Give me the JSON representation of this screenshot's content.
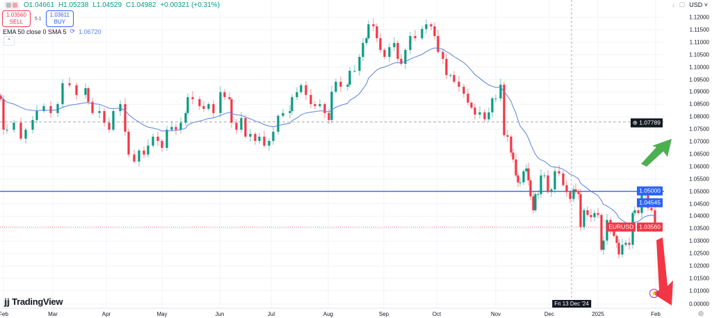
{
  "legend": {
    "open": "O1.04661",
    "high": "H1.05238",
    "low": "L1.04529",
    "close": "C1.04982",
    "change": "+0.00321 (+0.31%)"
  },
  "trade": {
    "sell_price": "1.03560",
    "sell_label": "SELL",
    "spread": "5.1",
    "buy_price": "1.03611",
    "buy_label": "BUY"
  },
  "indicator": {
    "label": "EMA 50 close 0 SMA 5",
    "value": "1.06720"
  },
  "toolbar": {
    "currency": "USD"
  },
  "crosshair_date": "Fri 13 Dec '24",
  "logo_text": "TradingView",
  "colors": {
    "up": "#089981",
    "down": "#f23645",
    "ema": "#5b7fde",
    "hline": "#2962ff",
    "grid": "#f0f3fa"
  },
  "chart_data": {
    "type": "candlestick",
    "symbol": "EURUSD",
    "price_ticks": [
      "1.12000",
      "1.11500",
      "1.11000",
      "1.10500",
      "1.10000",
      "1.09500",
      "1.09000",
      "1.08500",
      "1.08000",
      "1.07500",
      "1.07000",
      "1.06500",
      "1.06000",
      "1.05500",
      "1.05000",
      "1.04500",
      "1.04000",
      "1.03500",
      "1.03000",
      "1.02500",
      "1.02000",
      "1.01500",
      "1.01000",
      "0.00000"
    ],
    "time_ticks": [
      "Feb",
      "Mar",
      "Apr",
      "May",
      "Jun",
      "Jul",
      "Aug",
      "Sep",
      "Oct",
      "Nov",
      "Dec",
      "2025",
      "Feb"
    ],
    "ylim": [
      1.0,
      1.125
    ],
    "closes": [
      1.0871,
      1.0748,
      1.0748,
      1.0776,
      1.0712,
      1.0748,
      1.0787,
      1.0823,
      1.0843,
      1.0815,
      1.0851,
      1.0935,
      1.0927,
      1.0888,
      1.0915,
      1.086,
      1.0815,
      1.0823,
      1.0776,
      1.0748,
      1.0823,
      1.0851,
      1.074,
      1.0648,
      1.062,
      1.0664,
      1.0648,
      1.0684,
      1.072,
      1.0703,
      1.0675,
      1.0748,
      1.0759,
      1.0748,
      1.0776,
      1.0815,
      1.0879,
      1.0871,
      1.0843,
      1.0832,
      1.0851,
      1.0815,
      1.0899,
      1.0879,
      1.0871,
      1.0776,
      1.0748,
      1.0795,
      1.072,
      1.0731,
      1.0703,
      1.072,
      1.0684,
      1.0703,
      1.074,
      1.0804,
      1.0815,
      1.0823,
      1.0879,
      1.0899,
      1.0927,
      1.0888,
      1.0851,
      1.0843,
      1.0851,
      1.0815,
      1.0787,
      1.0901,
      1.0941,
      1.0921,
      1.0929,
      1.0985,
      1.0985,
      1.1041,
      1.1097,
      1.1116,
      1.1172,
      1.1164,
      1.1116,
      1.1069,
      1.1041,
      1.108,
      1.1097,
      1.1033,
      1.1013,
      1.1069,
      1.1125,
      1.1116,
      1.1153,
      1.1172,
      1.1164,
      1.1125,
      1.1061,
      1.1033,
      1.0968,
      1.0968,
      1.0941,
      1.0921,
      1.0893,
      1.0857,
      1.0837,
      1.0809,
      1.0818,
      1.079,
      1.0818,
      1.0874,
      1.0874,
      1.0929,
      1.0726,
      1.072,
      1.0656,
      1.0628,
      1.0564,
      1.0536,
      1.0536,
      1.0581,
      1.0592,
      1.0544,
      1.048,
      1.0424,
      1.0489,
      1.0489,
      1.0564,
      1.0564,
      1.0497,
      1.0508,
      1.0581,
      1.0572,
      1.0525,
      1.0497,
      1.0469,
      1.0508,
      1.0497,
      1.0489,
      1.0357,
      1.0424,
      1.0405,
      1.0396,
      1.0413,
      1.0405,
      1.0265,
      1.0302,
      1.0385,
      1.0341,
      1.0321,
      1.0293,
      1.0246,
      1.0285,
      1.0293,
      1.0285,
      1.0413,
      1.0424,
      1.0413,
      1.0489,
      1.0489,
      1.0433,
      1.0424,
      1.0356
    ],
    "ema_period": 50,
    "horizontal_lines": [
      {
        "price": 1.05,
        "label": "1.05000",
        "style": "solid",
        "color": "#2962ff"
      },
      {
        "price": 1.07789,
        "label": "1.07789",
        "style": "dashed",
        "color": "#131722"
      }
    ],
    "ema_last": {
      "price": 1.04545,
      "label": "1.04545"
    },
    "last_price": {
      "price": 1.0356,
      "label": "1.03560",
      "symbol_label": "EURUSD"
    },
    "annotations": [
      {
        "type": "arrow",
        "direction": "up",
        "color": "#4caf50"
      },
      {
        "type": "arrow",
        "direction": "down",
        "color": "#f23645"
      }
    ]
  }
}
